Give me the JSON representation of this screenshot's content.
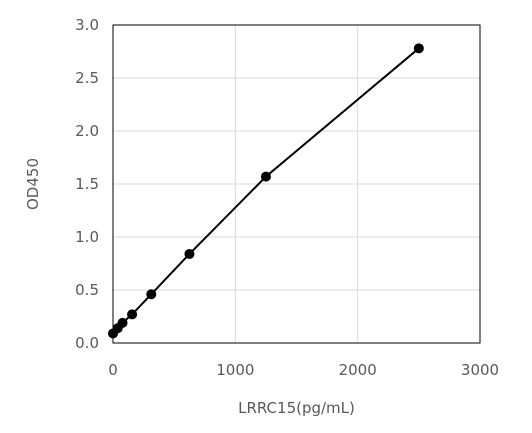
{
  "chart_data": {
    "type": "line",
    "title": "",
    "xlabel": "LRRC15(pg/mL)",
    "ylabel": "OD450",
    "xlim": [
      0,
      3000
    ],
    "ylim": [
      0,
      3.0
    ],
    "x_ticks": [
      0,
      1000,
      2000,
      3000
    ],
    "x_tick_labels": [
      "0",
      "1000",
      "2000",
      "3000"
    ],
    "y_ticks": [
      0,
      0.5,
      1.0,
      1.5,
      2.0,
      2.5,
      3.0
    ],
    "y_tick_labels": [
      "0.0",
      "0.5",
      "1.0",
      "1.5",
      "2.0",
      "2.5",
      "3.0"
    ],
    "grid": true,
    "legend": "none",
    "series": [
      {
        "x": [
          0,
          39,
          78,
          156,
          313,
          625,
          1250,
          2500
        ],
        "y": [
          0.09,
          0.14,
          0.19,
          0.27,
          0.46,
          0.84,
          1.57,
          2.78
        ],
        "color": "#000000",
        "marker": "circle"
      }
    ]
  }
}
